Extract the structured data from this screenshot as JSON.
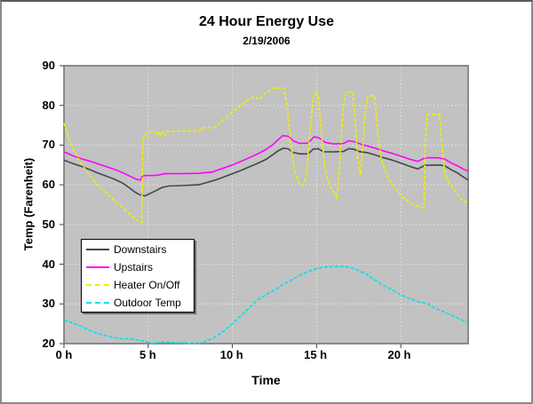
{
  "chart": {
    "title": "24 Hour Energy Use",
    "subtitle": "2/19/2006"
  },
  "chart_data": {
    "type": "line",
    "title": "24 Hour Energy Use",
    "subtitle": "2/19/2006",
    "xlabel": "Time",
    "ylabel": "Temp (Farenheit)",
    "xlim": [
      0,
      24
    ],
    "ylim": [
      20,
      90
    ],
    "x_ticks": [
      0,
      5,
      10,
      15,
      20
    ],
    "x_tick_labels": [
      "0 h",
      "5 h",
      "10 h",
      "15 h",
      "20 h"
    ],
    "y_ticks": [
      90,
      80,
      70,
      60,
      50,
      40,
      30,
      20
    ],
    "y_tick_labels": [
      "90",
      "80",
      "70",
      "60",
      "50",
      "40",
      "30",
      "20"
    ],
    "grid": true,
    "plot_bg": "#c2c2c2",
    "grid_color": "#dfdfdf",
    "axis_color": "#6e6e6e",
    "tick_color": "#404040",
    "legend_position": "middle-left",
    "series": [
      {
        "name": "Downstairs",
        "color": "#45454d",
        "dash": "solid",
        "points": [
          [
            0,
            66.2
          ],
          [
            0.5,
            65.4
          ],
          [
            1,
            64.7
          ],
          [
            1.5,
            63.9
          ],
          [
            2,
            63
          ],
          [
            2.5,
            62.2
          ],
          [
            3,
            61.4
          ],
          [
            3.5,
            60.4
          ],
          [
            4,
            58.9
          ],
          [
            4.2,
            58.2
          ],
          [
            4.5,
            57.5
          ],
          [
            4.8,
            57.2
          ],
          [
            5.1,
            57.8
          ],
          [
            5.4,
            58.4
          ],
          [
            5.8,
            59.3
          ],
          [
            6.2,
            59.7
          ],
          [
            7,
            59.8
          ],
          [
            8,
            60
          ],
          [
            8.5,
            60.6
          ],
          [
            9,
            61.2
          ],
          [
            9.5,
            62
          ],
          [
            10,
            62.8
          ],
          [
            10.5,
            63.6
          ],
          [
            11,
            64.5
          ],
          [
            11.5,
            65.4
          ],
          [
            12,
            66.4
          ],
          [
            12.4,
            67.6
          ],
          [
            12.7,
            68.5
          ],
          [
            13,
            69.2
          ],
          [
            13.3,
            69.1
          ],
          [
            13.6,
            68.2
          ],
          [
            14,
            67.8
          ],
          [
            14.5,
            67.8
          ],
          [
            14.8,
            69
          ],
          [
            15.1,
            69.1
          ],
          [
            15.4,
            68.3
          ],
          [
            16,
            68.3
          ],
          [
            16.6,
            68.4
          ],
          [
            16.9,
            69.1
          ],
          [
            17.2,
            69
          ],
          [
            17.5,
            68.4
          ],
          [
            18,
            68.1
          ],
          [
            18.5,
            67.5
          ],
          [
            19,
            66.8
          ],
          [
            19.5,
            66.2
          ],
          [
            20,
            65.5
          ],
          [
            20.5,
            64.7
          ],
          [
            21,
            64
          ],
          [
            21.45,
            64.9
          ],
          [
            22.2,
            65
          ],
          [
            22.6,
            64.8
          ],
          [
            23,
            63.8
          ],
          [
            23.4,
            62.9
          ],
          [
            23.7,
            62
          ],
          [
            24,
            61.2
          ]
        ]
      },
      {
        "name": "Upstairs",
        "color": "#ff00ff",
        "dash": "solid",
        "points": [
          [
            0,
            68.3
          ],
          [
            0.5,
            67.4
          ],
          [
            1,
            66.6
          ],
          [
            1.5,
            66
          ],
          [
            2,
            65.3
          ],
          [
            2.5,
            64.6
          ],
          [
            3,
            63.9
          ],
          [
            3.5,
            63
          ],
          [
            4,
            62
          ],
          [
            4.3,
            61.4
          ],
          [
            4.55,
            61.2
          ],
          [
            4.65,
            62.3
          ],
          [
            5.5,
            62.4
          ],
          [
            6,
            62.8
          ],
          [
            7,
            62.8
          ],
          [
            8,
            62.9
          ],
          [
            8.8,
            63.2
          ],
          [
            9.4,
            64.1
          ],
          [
            10,
            65
          ],
          [
            10.5,
            65.9
          ],
          [
            11,
            66.8
          ],
          [
            11.5,
            67.8
          ],
          [
            12,
            68.9
          ],
          [
            12.4,
            70.1
          ],
          [
            12.7,
            71.3
          ],
          [
            13,
            72.4
          ],
          [
            13.35,
            72.2
          ],
          [
            13.6,
            71.1
          ],
          [
            14,
            70.4
          ],
          [
            14.5,
            70.5
          ],
          [
            14.85,
            72.1
          ],
          [
            15.15,
            71.8
          ],
          [
            15.5,
            70.7
          ],
          [
            16,
            70.3
          ],
          [
            16.6,
            70.4
          ],
          [
            16.9,
            71.1
          ],
          [
            17.3,
            70.8
          ],
          [
            17.7,
            70.1
          ],
          [
            18,
            69.8
          ],
          [
            18.5,
            69.2
          ],
          [
            19,
            68.5
          ],
          [
            19.5,
            67.9
          ],
          [
            20,
            67.2
          ],
          [
            20.5,
            66.5
          ],
          [
            21,
            65.9
          ],
          [
            21.45,
            66.8
          ],
          [
            22.2,
            66.8
          ],
          [
            22.6,
            66.5
          ],
          [
            23,
            65.5
          ],
          [
            23.4,
            64.7
          ],
          [
            23.7,
            64
          ],
          [
            24,
            63.4
          ]
        ]
      },
      {
        "name": "Heater On/Off",
        "color": "#f0f000",
        "dash": "dashed",
        "points": [
          [
            0,
            75.5
          ],
          [
            0.3,
            71.5
          ],
          [
            0.6,
            68.5
          ],
          [
            1,
            65.5
          ],
          [
            1.5,
            62.5
          ],
          [
            2,
            60
          ],
          [
            2.5,
            58
          ],
          [
            3,
            56
          ],
          [
            3.5,
            54.2
          ],
          [
            4,
            52.3
          ],
          [
            4.3,
            51.2
          ],
          [
            4.55,
            50.5
          ],
          [
            4.62,
            50.5
          ],
          [
            4.68,
            71
          ],
          [
            4.8,
            72.8
          ],
          [
            5,
            73.3
          ],
          [
            5.5,
            73.3
          ],
          [
            5.6,
            72.4
          ],
          [
            5.7,
            73.4
          ],
          [
            5.8,
            72.4
          ],
          [
            5.9,
            73.4
          ],
          [
            6,
            72.4
          ],
          [
            6.1,
            73.4
          ],
          [
            6.3,
            73.4
          ],
          [
            7,
            73.5
          ],
          [
            8.05,
            73.6
          ],
          [
            8.2,
            74.3
          ],
          [
            8.9,
            74.4
          ],
          [
            9.3,
            75.8
          ],
          [
            9.7,
            77.2
          ],
          [
            10.1,
            78.6
          ],
          [
            10.5,
            80
          ],
          [
            10.9,
            81.2
          ],
          [
            11.2,
            82
          ],
          [
            11.45,
            81.9
          ],
          [
            11.6,
            81.3
          ],
          [
            11.9,
            82.9
          ],
          [
            12.1,
            83.4
          ],
          [
            12.35,
            84.3
          ],
          [
            13.05,
            84.4
          ],
          [
            13.25,
            80
          ],
          [
            13.45,
            71
          ],
          [
            13.7,
            63.5
          ],
          [
            13.95,
            60.5
          ],
          [
            14.2,
            59.9
          ],
          [
            14.4,
            62
          ],
          [
            14.6,
            73
          ],
          [
            14.8,
            82
          ],
          [
            14.95,
            83.3
          ],
          [
            15.1,
            82.5
          ],
          [
            15.3,
            72
          ],
          [
            15.5,
            64
          ],
          [
            15.75,
            60
          ],
          [
            16.05,
            58
          ],
          [
            16.2,
            56.6
          ],
          [
            16.3,
            61
          ],
          [
            16.45,
            71
          ],
          [
            16.6,
            80
          ],
          [
            16.75,
            83.4
          ],
          [
            17.15,
            83.4
          ],
          [
            17.3,
            76
          ],
          [
            17.45,
            66
          ],
          [
            17.6,
            62.5
          ],
          [
            17.75,
            70
          ],
          [
            17.9,
            79
          ],
          [
            18.05,
            82.5
          ],
          [
            18.45,
            82.4
          ],
          [
            18.65,
            72
          ],
          [
            18.85,
            66.5
          ],
          [
            19.2,
            62
          ],
          [
            19.6,
            59.4
          ],
          [
            20,
            57.4
          ],
          [
            20.5,
            55.6
          ],
          [
            21,
            54.6
          ],
          [
            21.3,
            54.2
          ],
          [
            21.38,
            54.2
          ],
          [
            21.45,
            70
          ],
          [
            21.55,
            77.6
          ],
          [
            22.3,
            77.8
          ],
          [
            22.45,
            70
          ],
          [
            22.6,
            63.5
          ],
          [
            22.8,
            61
          ],
          [
            23.1,
            59.2
          ],
          [
            23.5,
            56.8
          ],
          [
            23.8,
            55.8
          ],
          [
            24,
            55.4
          ]
        ]
      },
      {
        "name": "Outdoor Temp",
        "color": "#00e1ea",
        "dash": "dashed",
        "points": [
          [
            0,
            26
          ],
          [
            0.5,
            25.2
          ],
          [
            1,
            24.4
          ],
          [
            1.5,
            23.4
          ],
          [
            2,
            22.6
          ],
          [
            2.5,
            22
          ],
          [
            3,
            21.5
          ],
          [
            3.5,
            21.2
          ],
          [
            4,
            21.2
          ],
          [
            4.5,
            20.8
          ],
          [
            5,
            20.4
          ],
          [
            5.3,
            19.9
          ],
          [
            5.7,
            20.4
          ],
          [
            6.2,
            20.4
          ],
          [
            6.6,
            20.2
          ],
          [
            7.2,
            20.2
          ],
          [
            7.6,
            19.9
          ],
          [
            8,
            20.1
          ],
          [
            8.4,
            20.6
          ],
          [
            8.8,
            21.3
          ],
          [
            9.2,
            22.3
          ],
          [
            9.6,
            23.5
          ],
          [
            10,
            25
          ],
          [
            10.5,
            27
          ],
          [
            11,
            29
          ],
          [
            11.5,
            31
          ],
          [
            12,
            32.3
          ],
          [
            12.5,
            33.5
          ],
          [
            13,
            34.8
          ],
          [
            13.5,
            36
          ],
          [
            14,
            37.2
          ],
          [
            14.5,
            38.2
          ],
          [
            15,
            38.9
          ],
          [
            15.4,
            39.3
          ],
          [
            16,
            39.4
          ],
          [
            16.6,
            39.4
          ],
          [
            17,
            39.2
          ],
          [
            17.4,
            38.6
          ],
          [
            18,
            37.4
          ],
          [
            18.5,
            35.9
          ],
          [
            19,
            34.6
          ],
          [
            19.5,
            33.5
          ],
          [
            20,
            32.3
          ],
          [
            20.5,
            31.4
          ],
          [
            21,
            30.6
          ],
          [
            21.7,
            29.9
          ],
          [
            22,
            29
          ],
          [
            22.5,
            28.1
          ],
          [
            23,
            27.2
          ],
          [
            23.5,
            26.2
          ],
          [
            24,
            25.2
          ]
        ]
      }
    ]
  }
}
